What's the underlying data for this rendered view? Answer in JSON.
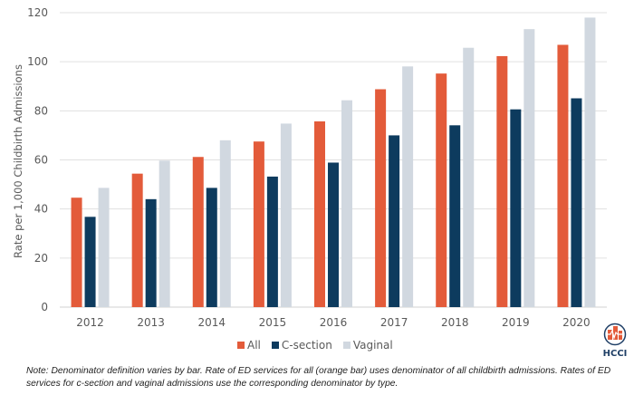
{
  "chart_data": {
    "type": "bar",
    "title": "",
    "xlabel": "",
    "ylabel": "Rate per 1,000 Childbirth Admissions",
    "ylim": [
      0,
      120
    ],
    "yticks": [
      0,
      20,
      40,
      60,
      80,
      100,
      120
    ],
    "grid": true,
    "legend_position": "bottom",
    "categories": [
      "2012",
      "2013",
      "2014",
      "2015",
      "2016",
      "2017",
      "2018",
      "2019",
      "2020"
    ],
    "series": [
      {
        "name": "All",
        "color": "#e35b3a",
        "values": [
          44.6,
          54.4,
          61.2,
          67.5,
          75.7,
          88.8,
          95.2,
          102.3,
          106.9
        ]
      },
      {
        "name": "C-section",
        "color": "#0d3b5e",
        "values": [
          36.8,
          44.0,
          48.6,
          53.2,
          58.9,
          70.0,
          74.1,
          80.6,
          85.1
        ]
      },
      {
        "name": "Vaginal",
        "color": "#d1d8e0",
        "values": [
          48.6,
          59.7,
          68.0,
          74.8,
          84.3,
          98.1,
          105.7,
          113.3,
          118.0
        ]
      }
    ]
  },
  "note": "Note: Denominator definition varies by bar. Rate of ED services for all (orange bar) uses denominator of all childbirth admissions. Rates of ED services for c-section and vaginal admissions use the corresponding denominator by type.",
  "logo": {
    "text": "HCCI",
    "icon": "hcci-heartbeat-logo-icon",
    "color": "#e35b3a",
    "text_color": "#1f3f66"
  }
}
